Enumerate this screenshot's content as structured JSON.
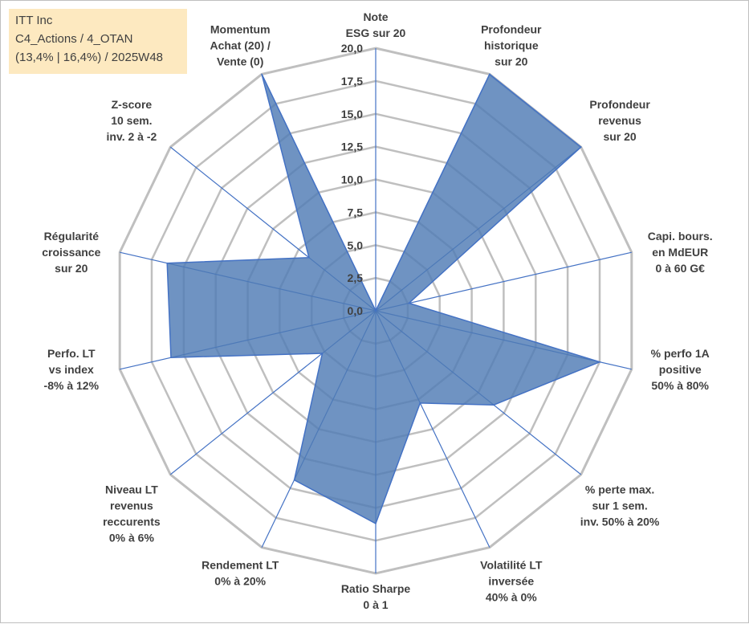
{
  "info": {
    "company": "ITT Inc",
    "portfolio": "C4_Actions / 4_OTAN",
    "stats": "(13,4% | 16,4%) / 2025W48"
  },
  "colors": {
    "grid": "#bfbfbf",
    "axis": "#4472c4",
    "fill": "#4f7bb5",
    "stroke": "#4472c4",
    "text": "#404040"
  },
  "chart_data": {
    "type": "radar",
    "title": "",
    "rmin": 0,
    "rmax": 20,
    "ticks": [
      "0,0",
      "2,5",
      "5,0",
      "7,5",
      "10,0",
      "12,5",
      "15,0",
      "17,5",
      "20,0"
    ],
    "tick_values": [
      0,
      2.5,
      5,
      7.5,
      10,
      12.5,
      15,
      17.5,
      20
    ],
    "axes": [
      {
        "label": [
          "Note",
          "ESG sur 20"
        ],
        "value": 0
      },
      {
        "label": [
          "Profondeur",
          "historique",
          "sur 20"
        ],
        "value": 20
      },
      {
        "label": [
          "Profondeur",
          "revenus",
          "sur 20"
        ],
        "value": 20
      },
      {
        "label": [
          "Capi. bours.",
          "en MdEUR",
          "0 à 60 G€"
        ],
        "value": 2.6
      },
      {
        "label": [
          "% perfo 1A",
          "positive",
          "50% à 80%"
        ],
        "value": 17.5
      },
      {
        "label": [
          "% perte max.",
          "sur 1 sem.",
          "inv. 50% à 20%"
        ],
        "value": 11.5
      },
      {
        "label": [
          "Volatilité LT",
          "inversée",
          "40% à 0%"
        ],
        "value": 7.8
      },
      {
        "label": [
          "Ratio Sharpe",
          "0 à 1"
        ],
        "value": 16.2
      },
      {
        "label": [
          "Rendement LT",
          "0% à 20%"
        ],
        "value": 14.3
      },
      {
        "label": [
          "Niveau LT",
          "revenus",
          "reccurents",
          "0% à 6%"
        ],
        "value": 5.2
      },
      {
        "label": [
          "Perfo. LT",
          "vs index",
          "-8% à 12%"
        ],
        "value": 16.0
      },
      {
        "label": [
          "Régularité",
          "croissance",
          "sur 20"
        ],
        "value": 16.3
      },
      {
        "label": [
          "Z-score",
          "10 sem.",
          "inv. 2 à -2"
        ],
        "value": 6.5
      },
      {
        "label": [
          "Momentum",
          "Achat (20) /",
          "Vente (0)"
        ],
        "value": 20
      }
    ]
  }
}
